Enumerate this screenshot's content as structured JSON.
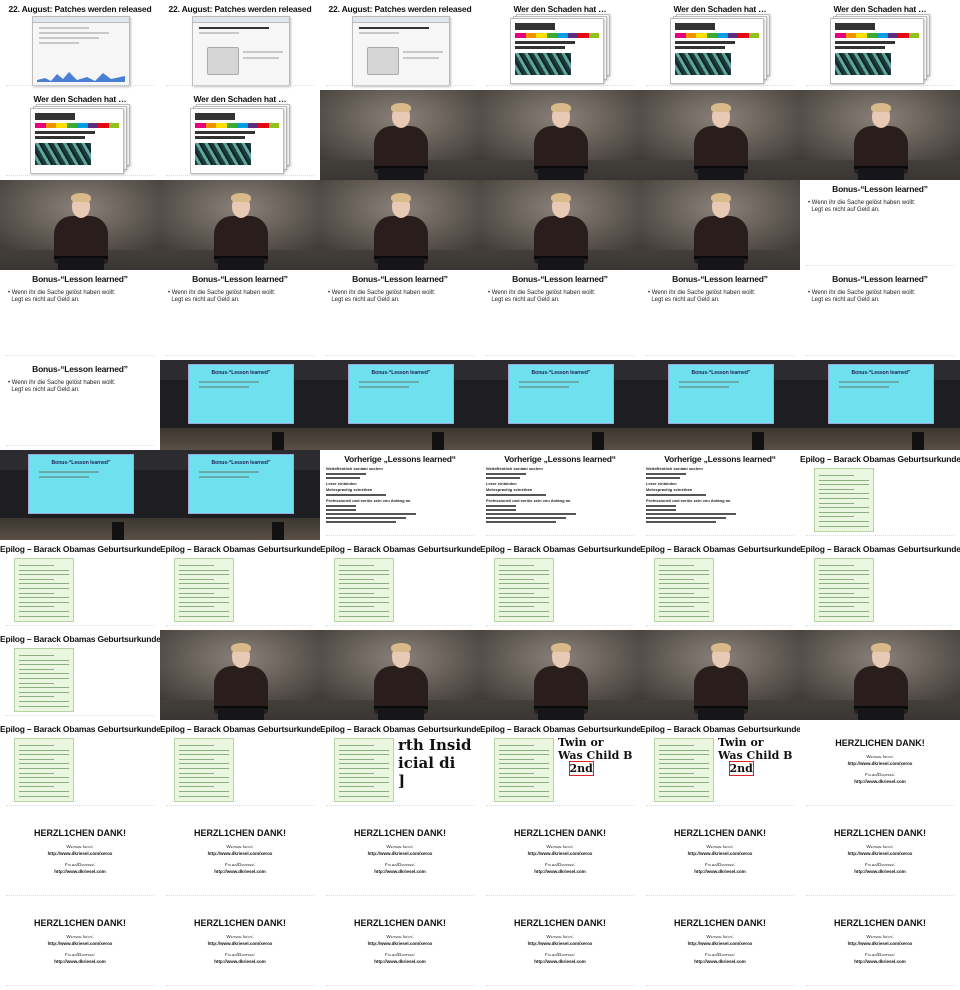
{
  "slides": {
    "patches_title": "22. August: Patches werden released",
    "schaden_title": "Wer den Schaden hat …",
    "bonus_title": "Bonus-“Lesson learned”",
    "bonus_bullet_1": "Wenn ihr die Sache gelöst haben wollt:",
    "bonus_bullet_2": "Legt es nicht auf Geld an.",
    "lessons_title": "Vorherige „Lessons learned“",
    "lessons_bullet_1": "Weltöffentlich kontakt suchen",
    "lessons_bullet_2": "Leser einbinden",
    "lessons_bullet_3": "Mehrsprachig schreiben",
    "lessons_bullet_4": "Professionell und seriös sein von Anfang an",
    "epilog_title": "Epilog – Barack Obamas Geburtsurkunde",
    "zoom_text_1": "rth Insid",
    "zoom_text_2": "icial di",
    "zoom_text_3": "Twin or",
    "zoom_text_4": "Was Child B",
    "zoom_text_5": "2nd",
    "thanks_title": "HERZLICHEN DANK!",
    "thanks_title_alt": "HERZL1CHEN DANK!",
    "thanks_more": "Weitere Infos:",
    "thanks_url_1": "http://www.dkriesel.com/xerox",
    "thanks_slides": "Folien/Dampfer:",
    "thanks_url_2": "http://www.dkriesel.com"
  },
  "grid": {
    "columns": 6,
    "rows": 11,
    "cells": [
      "patches",
      "patches",
      "patches",
      "schaden",
      "schaden",
      "schaden",
      "schaden",
      "schaden",
      "video",
      "video",
      "video",
      "video",
      "video",
      "video",
      "video",
      "video",
      "video",
      "bonus",
      "bonus",
      "bonus",
      "bonus",
      "bonus",
      "bonus",
      "bonus",
      "bonus",
      "room",
      "room",
      "room",
      "room",
      "room",
      "room",
      "room",
      "lessons",
      "lessons",
      "lessons",
      "epilog",
      "epilog",
      "epilog",
      "epilog",
      "epilog",
      "epilog",
      "epilog",
      "epilog",
      "video",
      "video",
      "video",
      "video",
      "video",
      "epilog",
      "epilog",
      "epilog-zoom1",
      "epilog-zoom2",
      "epilog-zoom2",
      "thanks",
      "thanks-alt",
      "thanks-alt",
      "thanks-alt",
      "thanks-alt",
      "thanks-alt",
      "thanks-alt",
      "thanks-alt",
      "thanks-alt",
      "thanks-alt",
      "thanks-alt",
      "thanks-alt",
      "thanks-alt"
    ]
  },
  "colors": {
    "tab_colors": [
      "#e6007e",
      "#f39200",
      "#ffde00",
      "#3aaa35",
      "#009fe3",
      "#5a2d82",
      "#e30613",
      "#95c11f"
    ],
    "screen": "#6fe0ee",
    "certificate": "#eaf6df",
    "highlight": "#dd2222"
  }
}
